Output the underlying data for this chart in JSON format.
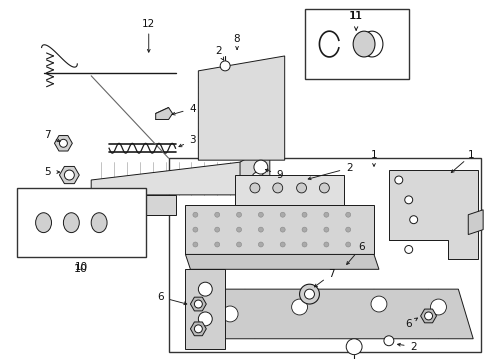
{
  "bg_color": "#ffffff",
  "lc": "#1a1a1a",
  "lc_light": "#888888",
  "lc_fill": "#e8e8e8",
  "lc_fill2": "#d0d0d0",
  "fig_width": 4.89,
  "fig_height": 3.6,
  "dpi": 100
}
